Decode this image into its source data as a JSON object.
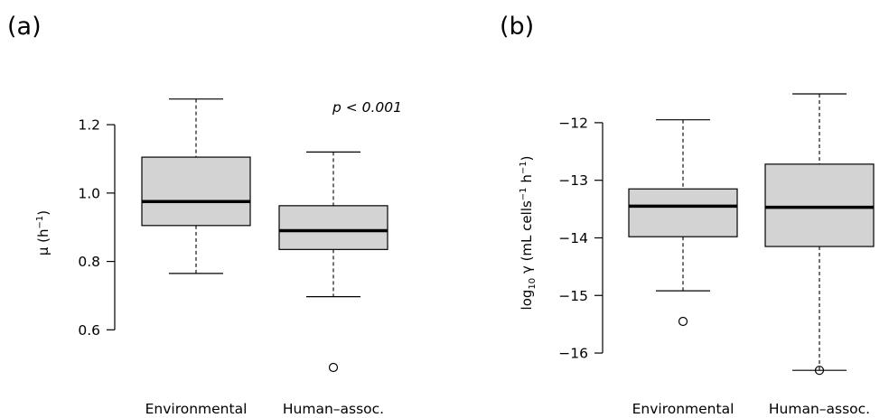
{
  "chart_data": [
    {
      "type": "boxplot",
      "panel_label": "(a)",
      "ylabel_main": "μ (h",
      "ylabel_sup": "−1",
      "ylabel_end": ")",
      "ylim": [
        0.49,
        1.29
      ],
      "yticks": [
        0.6,
        0.8,
        1.0,
        1.2
      ],
      "ytick_labels": [
        "0.6",
        "0.8",
        "1.0",
        "1.2"
      ],
      "categories": [
        "Environmental",
        "Human–assoc."
      ],
      "boxes": [
        {
          "name": "Environmental",
          "lower_whisker": 0.765,
          "q1": 0.905,
          "median": 0.975,
          "q3": 1.105,
          "upper_whisker": 1.275,
          "outliers": []
        },
        {
          "name": "Human–assoc.",
          "lower_whisker": 0.697,
          "q1": 0.835,
          "median": 0.89,
          "q3": 0.963,
          "upper_whisker": 1.12,
          "outliers": [
            0.49
          ]
        }
      ],
      "annotation": "p < 0.001"
    },
    {
      "type": "boxplot",
      "panel_label": "(b)",
      "ylabel_pre": "log",
      "ylabel_sub": "10",
      "ylabel_mid": " γ (mL cells",
      "ylabel_sup": "−1",
      "ylabel_end": " h",
      "ylabel_sup2": "−1",
      "ylabel_close": ")",
      "ylim": [
        -16.25,
        -11.5
      ],
      "yticks": [
        -16,
        -15,
        -14,
        -13,
        -12
      ],
      "ytick_labels": [
        "−16",
        "−15",
        "−14",
        "−13",
        "−12"
      ],
      "categories": [
        "Environmental",
        "Human–assoc."
      ],
      "boxes": [
        {
          "name": "Environmental",
          "lower_whisker": -14.92,
          "q1": -13.98,
          "median": -13.45,
          "q3": -13.15,
          "upper_whisker": -11.95,
          "outliers": [
            -15.45
          ]
        },
        {
          "name": "Human–assoc.",
          "lower_whisker": -16.3,
          "q1": -14.15,
          "median": -13.47,
          "q3": -12.72,
          "upper_whisker": -11.5,
          "outliers": [
            -16.3
          ]
        }
      ]
    }
  ]
}
